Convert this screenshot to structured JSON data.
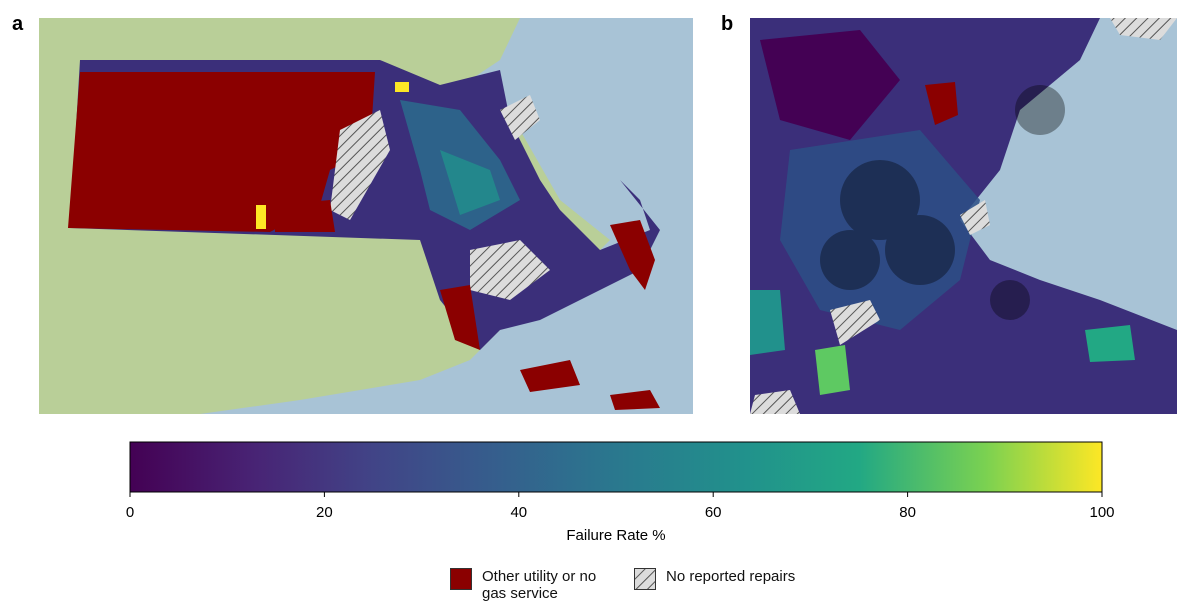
{
  "panels": [
    {
      "label": "a"
    },
    {
      "label": "b"
    }
  ],
  "colorbar": {
    "label": "Failure Rate %",
    "range": [
      0,
      100
    ],
    "ticks": [
      0,
      20,
      40,
      60,
      80,
      100
    ]
  },
  "legend": [
    {
      "label": "Other utility or no gas service",
      "color": "#8b0000"
    },
    {
      "label": "No reported repairs"
    }
  ]
}
